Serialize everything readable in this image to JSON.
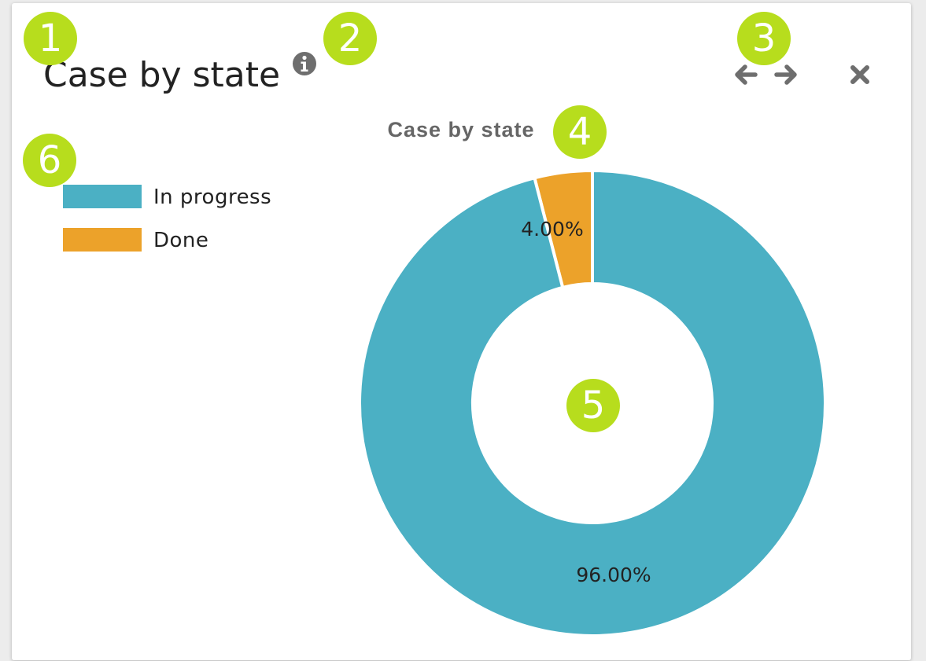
{
  "widget": {
    "title": "Case by state"
  },
  "badges": [
    "1",
    "2",
    "3",
    "4",
    "5",
    "6"
  ],
  "chart_data": {
    "type": "pie",
    "style": "donut",
    "title": "Case by state",
    "categories": [
      "In progress",
      "Done"
    ],
    "values": [
      96,
      4
    ],
    "labels": [
      "96.00%",
      "4.00%"
    ],
    "colors": [
      "#4bb0c4",
      "#eca22a"
    ],
    "legend_position": "left"
  },
  "icons": {
    "info": "info-icon",
    "prev": "arrow-left-icon",
    "next": "arrow-right-icon",
    "close": "close-icon"
  },
  "colors": {
    "badge": "#b7dd1d",
    "icon": "#6e6e6e"
  }
}
